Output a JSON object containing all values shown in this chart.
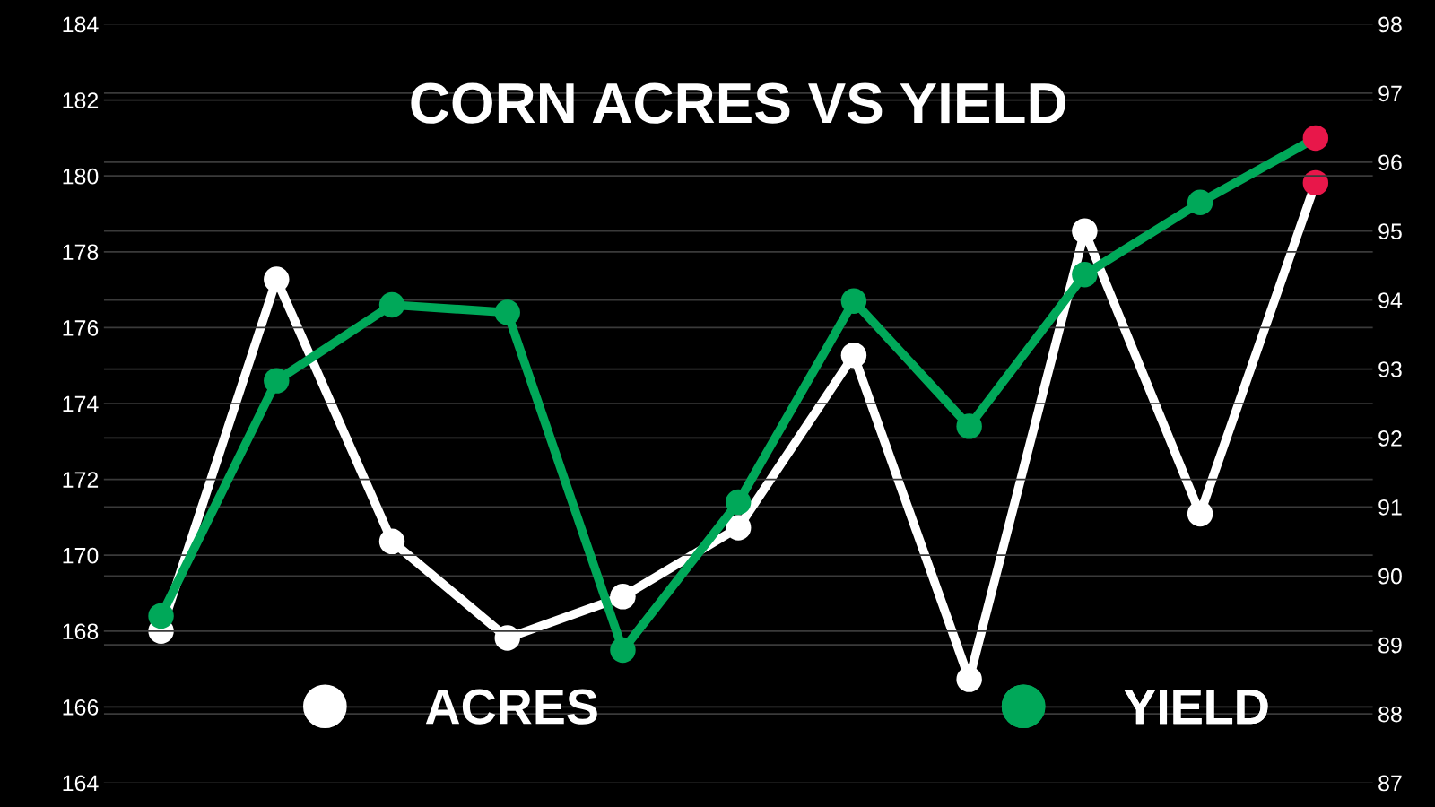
{
  "chart_data": {
    "type": "line",
    "title": "CORN ACRES VS YIELD",
    "categories": [
      null,
      null,
      null,
      null,
      null,
      null,
      null,
      null,
      null,
      null,
      null
    ],
    "series": [
      {
        "name": "ACRES",
        "color": "#ffffff",
        "axis": "y2",
        "colors": [
          "#ffffff",
          "#ffffff",
          "#ffffff",
          "#ffffff",
          "#ffffff",
          "#ffffff",
          "#ffffff",
          "#ffffff",
          "#ffffff",
          "#ffffff",
          "#e8174a"
        ],
        "values": [
          89.2,
          94.3,
          90.5,
          89.1,
          89.7,
          90.7,
          93.2,
          88.5,
          95.0,
          90.9,
          95.7
        ]
      },
      {
        "name": "YIELD",
        "color": "#00a859",
        "colors": [
          "#00a859",
          "#00a859",
          "#00a859",
          "#00a859",
          "#00a859",
          "#00a859",
          "#00a859",
          "#00a859",
          "#00a859",
          "#00a859",
          "#e8174a"
        ],
        "values": [
          168.4,
          174.6,
          176.6,
          176.4,
          167.5,
          171.4,
          176.7,
          173.4,
          177.4,
          179.3,
          181.0
        ]
      }
    ],
    "ylim": [
      164,
      184
    ],
    "yticks": [
      164,
      166,
      168,
      170,
      172,
      174,
      176,
      178,
      180,
      182,
      184
    ],
    "y2lim": [
      87,
      98
    ],
    "y2ticks": [
      87,
      88,
      89,
      90,
      91,
      92,
      93,
      94,
      95,
      96,
      97,
      98
    ],
    "grid": "y",
    "legend": "bottom",
    "marker": "circle",
    "line_style": "solid",
    "tick_labels": "y"
  }
}
